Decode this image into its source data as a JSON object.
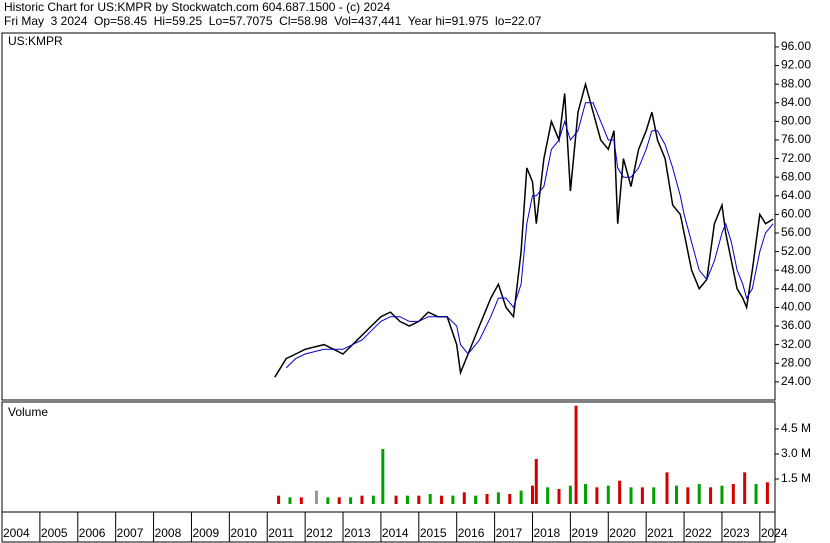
{
  "header": {
    "line1": "Historic Chart for US:KMPR by Stockwatch.com 604.687.1500 - (c) 2024",
    "line2": "Fri May  3 2024  Op=58.45  Hi=59.25  Lo=57.7075  Cl=58.98  Vol=437,441  Year hi=91.975  lo=22.07"
  },
  "chart_data": [
    {
      "type": "line",
      "title": "US:KMPR",
      "x": [
        2011.2,
        2011.5,
        2011.75,
        2012,
        2012.5,
        2013,
        2013.5,
        2013.75,
        2014,
        2014.25,
        2014.5,
        2014.75,
        2015,
        2015.25,
        2015.5,
        2015.75,
        2016,
        2016.1,
        2016.3,
        2016.6,
        2016.9,
        2017.1,
        2017.3,
        2017.5,
        2017.7,
        2017.85,
        2018,
        2018.1,
        2018.3,
        2018.5,
        2018.7,
        2018.85,
        2019,
        2019.2,
        2019.4,
        2019.6,
        2019.8,
        2020,
        2020.15,
        2020.25,
        2020.4,
        2020.6,
        2020.8,
        2021,
        2021.15,
        2021.3,
        2021.5,
        2021.7,
        2021.9,
        2022,
        2022.2,
        2022.4,
        2022.6,
        2022.8,
        2023,
        2023.1,
        2023.25,
        2023.4,
        2023.55,
        2023.65,
        2023.8,
        2024,
        2024.15,
        2024.35
      ],
      "series": [
        {
          "color": "#000000",
          "values": [
            25,
            29,
            30,
            31,
            32,
            30,
            34,
            36,
            38,
            39,
            37,
            36,
            37,
            39,
            38,
            38,
            32,
            26,
            30,
            36,
            42,
            45,
            40,
            38,
            52,
            70,
            67,
            58,
            72,
            80,
            76,
            86,
            65,
            82,
            88,
            82,
            76,
            74,
            78,
            58,
            72,
            66,
            74,
            78,
            82,
            76,
            72,
            62,
            60,
            56,
            48,
            44,
            46,
            58,
            62,
            56,
            50,
            44,
            42,
            40,
            48,
            60,
            58,
            59
          ]
        },
        {
          "color": "#0000cc",
          "values": [
            null,
            27,
            29,
            30,
            31,
            31,
            33,
            35,
            37,
            38,
            38,
            37,
            37,
            38,
            38,
            38,
            36,
            32,
            30,
            33,
            38,
            42,
            42,
            40,
            45,
            58,
            64,
            64,
            66,
            74,
            76,
            80,
            76,
            78,
            84,
            84,
            80,
            76,
            76,
            70,
            68,
            68,
            70,
            74,
            78,
            78,
            75,
            70,
            64,
            60,
            54,
            48,
            46,
            50,
            56,
            58,
            54,
            48,
            45,
            42,
            44,
            52,
            56,
            58
          ]
        }
      ],
      "xlim": [
        2004,
        2024.4
      ],
      "ylim": [
        20.1,
        99
      ],
      "yticks": [
        {
          "value": 24,
          "label": "24.00"
        },
        {
          "value": 28,
          "label": "28.00"
        },
        {
          "value": 32,
          "label": "32.00"
        },
        {
          "value": 36,
          "label": "36.00"
        },
        {
          "value": 40,
          "label": "40.00"
        },
        {
          "value": 44,
          "label": "44.00"
        },
        {
          "value": 48,
          "label": "48.00"
        },
        {
          "value": 52,
          "label": "52.00"
        },
        {
          "value": 56,
          "label": "56.00"
        },
        {
          "value": 60,
          "label": "60.00"
        },
        {
          "value": 64,
          "label": "64.00"
        },
        {
          "value": 68,
          "label": "68.00"
        },
        {
          "value": 72,
          "label": "72.00"
        },
        {
          "value": 76,
          "label": "76.00"
        },
        {
          "value": 80,
          "label": "80.00"
        },
        {
          "value": 84,
          "label": "84.00"
        },
        {
          "value": 88,
          "label": "88.00"
        },
        {
          "value": 92,
          "label": "92.00"
        },
        {
          "value": 96,
          "label": "96.00"
        }
      ]
    },
    {
      "type": "bar",
      "title": "Volume",
      "x": [
        2011.3,
        2011.6,
        2011.9,
        2012.3,
        2012.6,
        2012.9,
        2013.2,
        2013.5,
        2013.8,
        2014.05,
        2014.4,
        2014.7,
        2015.0,
        2015.3,
        2015.6,
        2015.9,
        2016.2,
        2016.5,
        2016.8,
        2017.1,
        2017.4,
        2017.7,
        2018.0,
        2018.1,
        2018.4,
        2018.7,
        2019.0,
        2019.15,
        2019.4,
        2019.7,
        2020.0,
        2020.3,
        2020.6,
        2020.9,
        2021.2,
        2021.55,
        2021.8,
        2022.1,
        2022.4,
        2022.7,
        2023.0,
        2023.3,
        2023.6,
        2023.9,
        2024.2
      ],
      "values": [
        0.5,
        0.4,
        0.4,
        0.8,
        0.4,
        0.4,
        0.4,
        0.5,
        0.5,
        3.3,
        0.5,
        0.5,
        0.5,
        0.6,
        0.5,
        0.5,
        0.7,
        0.5,
        0.6,
        0.7,
        0.6,
        0.8,
        1.1,
        2.7,
        1.0,
        0.9,
        1.1,
        5.9,
        1.2,
        1.0,
        1.1,
        1.4,
        1.0,
        1.0,
        1.0,
        1.9,
        1.1,
        1.0,
        1.2,
        1.0,
        1.1,
        1.2,
        1.9,
        1.2,
        1.3
      ],
      "colors": [
        "#d00000",
        "#00a000",
        "#d00000",
        "#999999",
        "#00a000",
        "#d00000",
        "#00a000",
        "#d00000",
        "#00a000",
        "#00a000",
        "#d00000",
        "#00a000",
        "#d00000",
        "#00a000",
        "#d00000",
        "#00a000",
        "#d00000",
        "#00a000",
        "#d00000",
        "#00a000",
        "#d00000",
        "#00a000",
        "#d00000",
        "#d00000",
        "#00a000",
        "#d00000",
        "#00a000",
        "#d00000",
        "#00a000",
        "#d00000",
        "#00a000",
        "#d00000",
        "#00a000",
        "#d00000",
        "#00a000",
        "#d00000",
        "#00a000",
        "#d00000",
        "#00a000",
        "#d00000",
        "#00a000",
        "#d00000",
        "#d00000",
        "#00a000",
        "#d00000"
      ],
      "xlim": [
        2004,
        2024.4
      ],
      "ylim": [
        -0.48,
        6.12
      ],
      "yticks": [
        {
          "value": 1.5,
          "label": "1.5 M"
        },
        {
          "value": 3.0,
          "label": "3.0 M"
        },
        {
          "value": 4.5,
          "label": "4.5 M"
        }
      ],
      "xticks": [
        2004,
        2005,
        2006,
        2007,
        2008,
        2009,
        2010,
        2011,
        2012,
        2013,
        2014,
        2015,
        2016,
        2017,
        2018,
        2019,
        2020,
        2021,
        2022,
        2023,
        2024
      ]
    }
  ]
}
